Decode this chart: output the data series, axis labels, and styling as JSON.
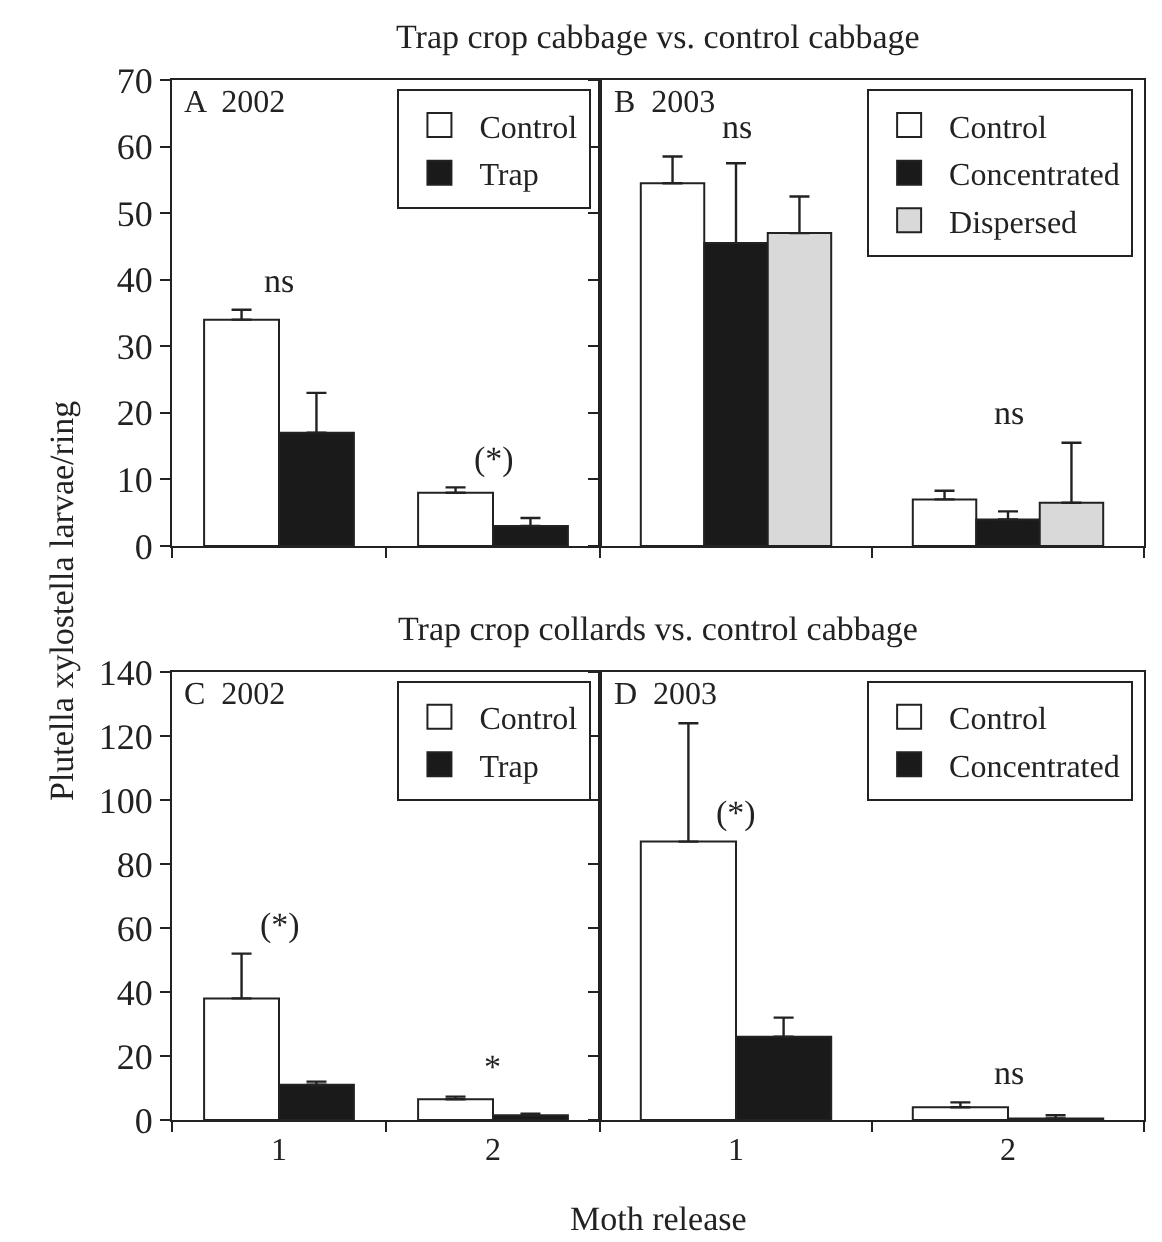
{
  "chart_data": [
    {
      "type": "bar",
      "title": "Trap crop cabbage vs. control cabbage",
      "ylabel": "Plutella xylostella larvae/ring",
      "categories": [
        "1",
        "2"
      ],
      "series": [
        {
          "name": "Control",
          "color": "#ffffff",
          "values": [
            34,
            8
          ],
          "errors": [
            [
              34,
              35.5
            ],
            [
              8,
              8.8
            ]
          ]
        },
        {
          "name": "Trap",
          "color": "#1a1a1a",
          "values": [
            17,
            3
          ],
          "errors": [
            [
              17,
              23
            ],
            [
              3,
              4.2
            ]
          ]
        }
      ],
      "annotations": [
        "A  2002",
        "ns",
        "(*)"
      ],
      "ylim": [
        0,
        70
      ],
      "yticks": [
        0,
        10,
        20,
        30,
        40,
        50,
        60,
        70
      ],
      "legend": "top right",
      "tick_labels": "y",
      "grid": false
    },
    {
      "type": "bar",
      "categories": [
        "1",
        "2"
      ],
      "series": [
        {
          "name": "Control",
          "color": "#ffffff",
          "values": [
            54.5,
            7
          ],
          "errors": [
            [
              54.5,
              58.5
            ],
            [
              7,
              8.3
            ]
          ]
        },
        {
          "name": "Concentrated",
          "color": "#1a1a1a",
          "values": [
            45.5,
            4
          ],
          "errors": [
            [
              45.5,
              57.5
            ],
            [
              4,
              5.2
            ]
          ]
        },
        {
          "name": "Dispersed",
          "color": "#d9d9d9",
          "values": [
            47,
            6.5
          ],
          "errors": [
            [
              47,
              52.5
            ],
            [
              6.5,
              15.5
            ]
          ]
        }
      ],
      "annotations": [
        "B  2003",
        "ns",
        "ns"
      ],
      "ylim": [
        0,
        70
      ],
      "yticks": [
        0,
        10,
        20,
        30,
        40,
        50,
        60,
        70
      ],
      "legend": "top right",
      "tick_labels": false,
      "grid": false
    },
    {
      "type": "bar",
      "title": "Trap crop collards vs. control cabbage",
      "xlabel": "Moth release",
      "categories": [
        "1",
        "2"
      ],
      "series": [
        {
          "name": "Control",
          "color": "#ffffff",
          "values": [
            38,
            6.5
          ],
          "errors": [
            [
              38,
              52
            ],
            [
              6.5,
              7.3
            ]
          ]
        },
        {
          "name": "Trap",
          "color": "#1a1a1a",
          "values": [
            11,
            1.5
          ],
          "errors": [
            [
              11,
              12
            ],
            [
              1.5,
              2
            ]
          ]
        }
      ],
      "annotations": [
        "C  2002",
        "(*)",
        "*"
      ],
      "ylim": [
        0,
        140
      ],
      "yticks": [
        0,
        20,
        40,
        60,
        80,
        100,
        120,
        140
      ],
      "legend": "top right",
      "grid": false
    },
    {
      "type": "bar",
      "categories": [
        "1",
        "2"
      ],
      "series": [
        {
          "name": "Control",
          "color": "#ffffff",
          "values": [
            87,
            4
          ],
          "errors": [
            [
              87,
              124
            ],
            [
              4,
              5.5
            ]
          ]
        },
        {
          "name": "Concentrated",
          "color": "#1a1a1a",
          "values": [
            26,
            0.5
          ],
          "errors": [
            [
              26,
              32
            ],
            [
              0.5,
              1.5
            ]
          ]
        }
      ],
      "annotations": [
        "D  2003",
        "(*)",
        "ns"
      ],
      "ylim": [
        0,
        140
      ],
      "yticks": [
        0,
        20,
        40,
        60,
        80,
        100,
        120,
        140
      ],
      "legend": "top right",
      "tick_labels": "x",
      "grid": false
    }
  ]
}
